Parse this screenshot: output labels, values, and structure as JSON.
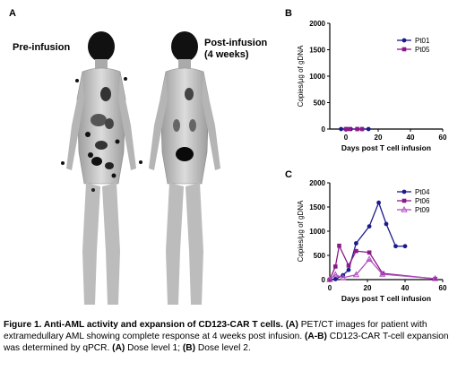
{
  "panels": {
    "a": {
      "letter": "A",
      "pre_label": "Pre-infusion",
      "post_label_1": "Post-infusion",
      "post_label_2": "(4 weeks)"
    },
    "b": {
      "letter": "B"
    },
    "c": {
      "letter": "C"
    }
  },
  "chart_data": [
    {
      "id": "B",
      "type": "line",
      "title": "",
      "xlabel": "Days post T cell infusion",
      "ylabel": "Copies/µg of gDNA",
      "xlim": [
        -10,
        60
      ],
      "ylim": [
        0,
        2000
      ],
      "xticks": [
        0,
        20,
        40,
        60
      ],
      "yticks": [
        0,
        500,
        1000,
        1500,
        2000
      ],
      "legend_position": "top-right",
      "series": [
        {
          "name": "Pt01",
          "color": "#1a1a8c",
          "marker": "circle",
          "x": [
            -3,
            0,
            3,
            7,
            10,
            14
          ],
          "y": [
            0,
            0,
            0,
            0,
            0,
            0
          ]
        },
        {
          "name": "Pt05",
          "color": "#8b1a8b",
          "marker": "square",
          "x": [
            0,
            2,
            7,
            10
          ],
          "y": [
            0,
            0,
            0,
            0
          ]
        }
      ]
    },
    {
      "id": "C",
      "type": "line",
      "title": "",
      "xlabel": "Days post T cell infusion",
      "ylabel": "Copies/µg of gDNA",
      "xlim": [
        0,
        60
      ],
      "ylim": [
        0,
        2000
      ],
      "xticks": [
        0,
        20,
        40,
        60
      ],
      "yticks": [
        0,
        500,
        1000,
        1500,
        2000
      ],
      "legend_position": "top-right",
      "series": [
        {
          "name": "Pt04",
          "color": "#1a1a8c",
          "marker": "circle",
          "x": [
            0,
            3,
            7,
            10,
            14,
            21,
            26,
            30,
            35,
            40
          ],
          "y": [
            0,
            10,
            90,
            200,
            750,
            1100,
            1590,
            1150,
            690,
            690
          ]
        },
        {
          "name": "Pt06",
          "color": "#8b1a8b",
          "marker": "square",
          "x": [
            0,
            3,
            5,
            10,
            14,
            21,
            28,
            56
          ],
          "y": [
            0,
            270,
            700,
            290,
            590,
            560,
            130,
            15
          ]
        },
        {
          "name": "Pt09",
          "color": "#b04fc0",
          "marker": "triangle",
          "x": [
            0,
            3,
            7,
            14,
            21,
            28,
            56
          ],
          "y": [
            0,
            100,
            40,
            100,
            420,
            110,
            20
          ]
        }
      ]
    }
  ],
  "caption": {
    "p1": "Figure 1. Anti-AML activity and expansion of CD123-CAR T cells.",
    "p2": " (A)",
    "p3": " PET/CT images for patient with extramedullary AML showing complete response at 4 weeks post infusion.",
    "p4": " (A-B)",
    "p5": " CD123-CAR T-cell expansion was determined by qPCR.",
    "p6": " (A)",
    "p7": " Dose level 1;",
    "p8": " (B)",
    "p9": " Dose level 2."
  }
}
